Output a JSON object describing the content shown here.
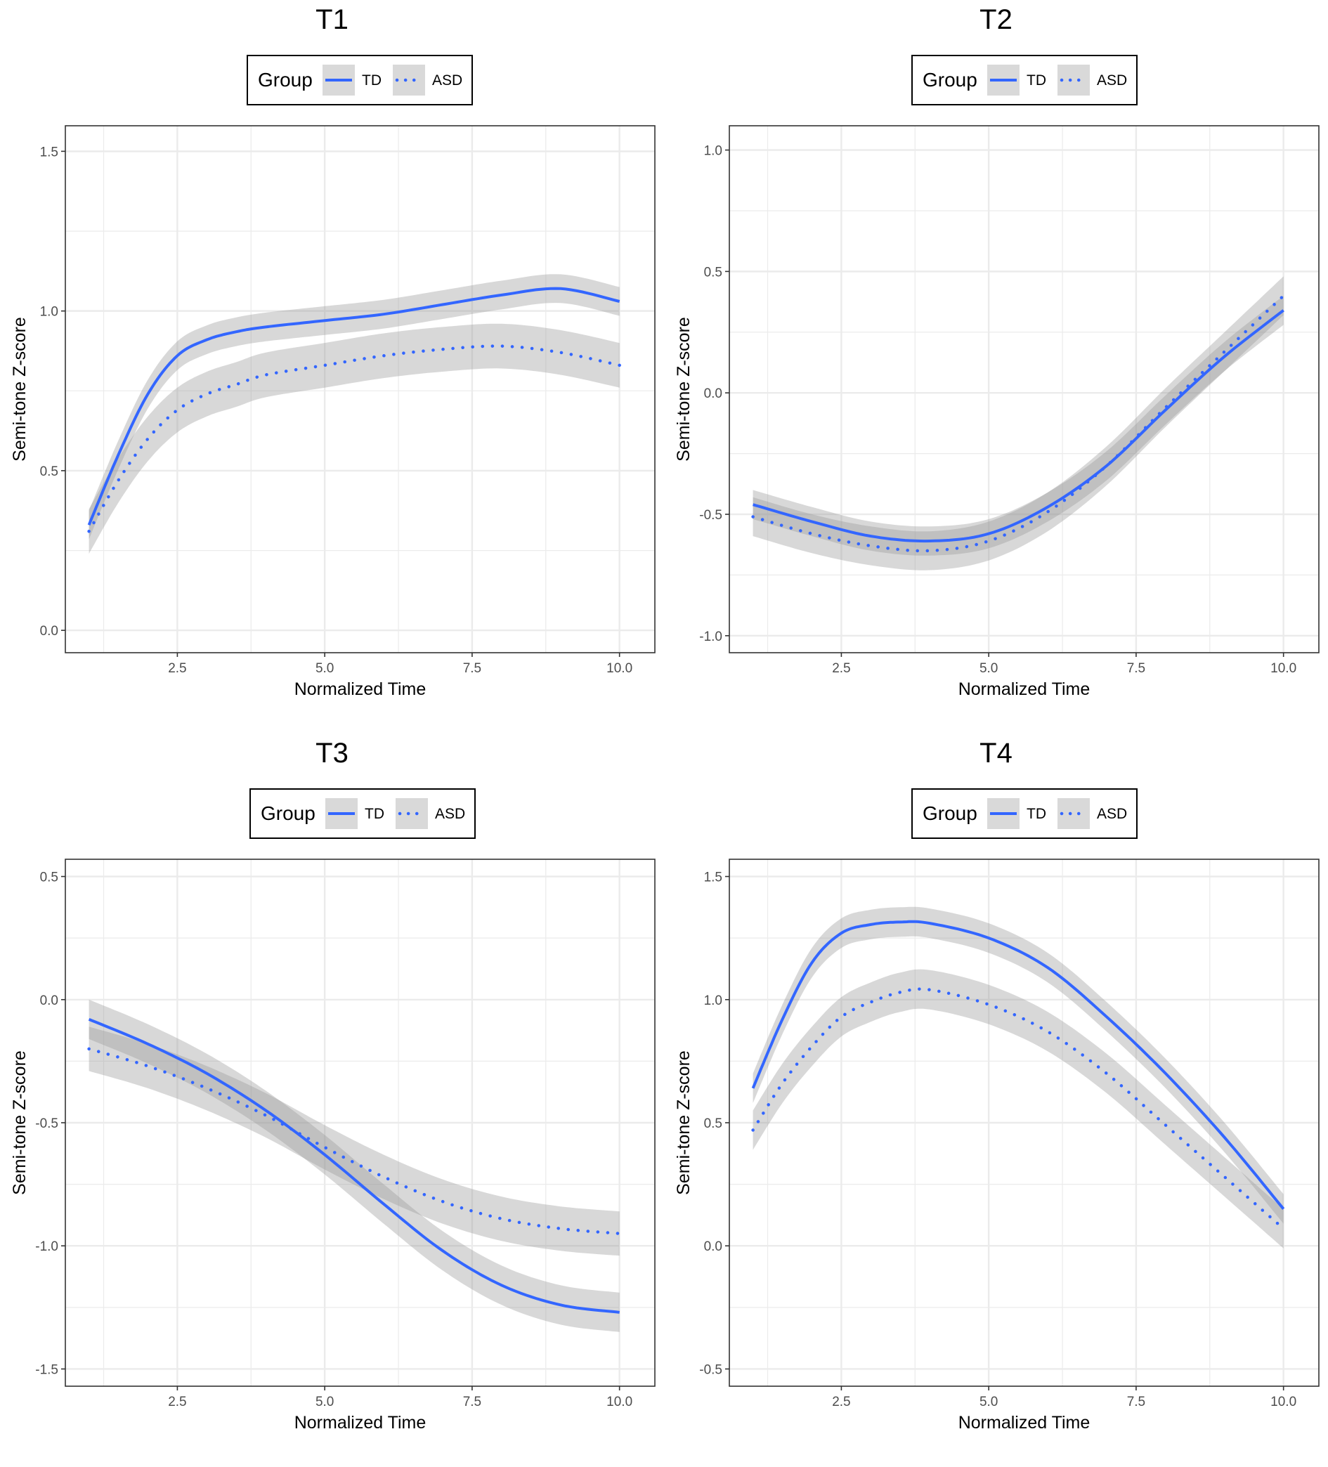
{
  "chart_data": [
    {
      "type": "line",
      "title": "T1",
      "xlabel": "Normalized Time",
      "ylabel": "Semi-tone Z-score",
      "xlim": [
        0.6,
        10.6
      ],
      "ylim": [
        -0.07,
        1.58
      ],
      "xticks": [
        2.5,
        5.0,
        7.5,
        10.0
      ],
      "xtick_labels": [
        "2.5",
        "5.0",
        "7.5",
        "10.0"
      ],
      "yticks": [
        0.0,
        0.5,
        1.0,
        1.5
      ],
      "ytick_labels": [
        "0.0",
        "0.5",
        "1.0",
        "1.5"
      ],
      "legend": {
        "title": "Group",
        "entries": [
          "TD",
          "ASD"
        ],
        "position": "top"
      },
      "x": [
        1,
        1.5,
        2,
        2.5,
        3,
        3.5,
        4,
        5,
        6,
        7,
        8,
        9,
        10
      ],
      "series": [
        {
          "name": "TD",
          "style": "solid",
          "values": [
            0.33,
            0.55,
            0.74,
            0.86,
            0.91,
            0.935,
            0.95,
            0.97,
            0.99,
            1.02,
            1.05,
            1.07,
            1.03
          ],
          "band": 0.045
        },
        {
          "name": "ASD",
          "style": "dotted",
          "values": [
            0.31,
            0.47,
            0.6,
            0.69,
            0.74,
            0.77,
            0.8,
            0.83,
            0.86,
            0.88,
            0.89,
            0.87,
            0.83
          ],
          "band": 0.07
        }
      ]
    },
    {
      "type": "line",
      "title": "T2",
      "xlabel": "Normalized Time",
      "ylabel": "Semi-tone Z-score",
      "xlim": [
        0.6,
        10.6
      ],
      "ylim": [
        -1.07,
        1.1
      ],
      "xticks": [
        2.5,
        5.0,
        7.5,
        10.0
      ],
      "xtick_labels": [
        "2.5",
        "5.0",
        "7.5",
        "10.0"
      ],
      "yticks": [
        -1.0,
        -0.5,
        0.0,
        0.5,
        1.0
      ],
      "ytick_labels": [
        "-1.0",
        "-0.5",
        "0.0",
        "0.5",
        "1.0"
      ],
      "legend": {
        "title": "Group",
        "entries": [
          "TD",
          "ASD"
        ],
        "position": "top"
      },
      "x": [
        1,
        2,
        3,
        4,
        5,
        6,
        7,
        8,
        9,
        10
      ],
      "series": [
        {
          "name": "TD",
          "style": "solid",
          "values": [
            -0.46,
            -0.53,
            -0.59,
            -0.61,
            -0.58,
            -0.47,
            -0.3,
            -0.07,
            0.15,
            0.34
          ],
          "band": 0.06
        },
        {
          "name": "ASD",
          "style": "dotted",
          "values": [
            -0.51,
            -0.58,
            -0.63,
            -0.65,
            -0.61,
            -0.49,
            -0.3,
            -0.06,
            0.17,
            0.4
          ],
          "band": 0.08
        }
      ]
    },
    {
      "type": "line",
      "title": "T3",
      "xlabel": "Normalized Time",
      "ylabel": "Semi-tone Z-score",
      "xlim": [
        0.6,
        10.6
      ],
      "ylim": [
        -1.57,
        0.57
      ],
      "xticks": [
        2.5,
        5.0,
        7.5,
        10.0
      ],
      "xtick_labels": [
        "2.5",
        "5.0",
        "7.5",
        "10.0"
      ],
      "yticks": [
        -1.5,
        -1.0,
        -0.5,
        0.0,
        0.5
      ],
      "ytick_labels": [
        "-1.5",
        "-1.0",
        "-0.5",
        "0.0",
        "0.5"
      ],
      "legend": {
        "title": "Group",
        "entries": [
          "TD",
          "ASD"
        ],
        "position": "top"
      },
      "x": [
        1,
        2,
        3,
        4,
        5,
        6,
        7,
        8,
        9,
        10
      ],
      "series": [
        {
          "name": "TD",
          "style": "solid",
          "values": [
            -0.08,
            -0.18,
            -0.3,
            -0.45,
            -0.63,
            -0.83,
            -1.02,
            -1.16,
            -1.24,
            -1.27
          ],
          "band": 0.08
        },
        {
          "name": "ASD",
          "style": "dotted",
          "values": [
            -0.2,
            -0.27,
            -0.36,
            -0.47,
            -0.6,
            -0.72,
            -0.82,
            -0.89,
            -0.93,
            -0.95
          ],
          "band": 0.09
        }
      ]
    },
    {
      "type": "line",
      "title": "T4",
      "xlabel": "Normalized Time",
      "ylabel": "Semi-tone Z-score",
      "xlim": [
        0.6,
        10.6
      ],
      "ylim": [
        -0.57,
        1.57
      ],
      "xticks": [
        2.5,
        5.0,
        7.5,
        10.0
      ],
      "xtick_labels": [
        "2.5",
        "5.0",
        "7.5",
        "10.0"
      ],
      "yticks": [
        -0.5,
        0.0,
        0.5,
        1.0,
        1.5
      ],
      "ytick_labels": [
        "-0.5",
        "0.0",
        "0.5",
        "1.0",
        "1.5"
      ],
      "legend": {
        "title": "Group",
        "entries": [
          "TD",
          "ASD"
        ],
        "position": "top"
      },
      "x": [
        1,
        1.5,
        2,
        2.5,
        3,
        3.5,
        4,
        5,
        6,
        7,
        8,
        9,
        10
      ],
      "series": [
        {
          "name": "TD",
          "style": "solid",
          "values": [
            0.64,
            0.92,
            1.15,
            1.27,
            1.305,
            1.315,
            1.31,
            1.25,
            1.13,
            0.93,
            0.7,
            0.44,
            0.15
          ],
          "band": 0.06
        },
        {
          "name": "ASD",
          "style": "dotted",
          "values": [
            0.47,
            0.66,
            0.81,
            0.93,
            0.99,
            1.03,
            1.04,
            0.98,
            0.87,
            0.7,
            0.49,
            0.28,
            0.07
          ],
          "band": 0.08
        }
      ]
    }
  ],
  "colors": {
    "line": "#3366ff",
    "band": "#999999",
    "grid": "#ebebeb",
    "panel_border": "#333333"
  }
}
